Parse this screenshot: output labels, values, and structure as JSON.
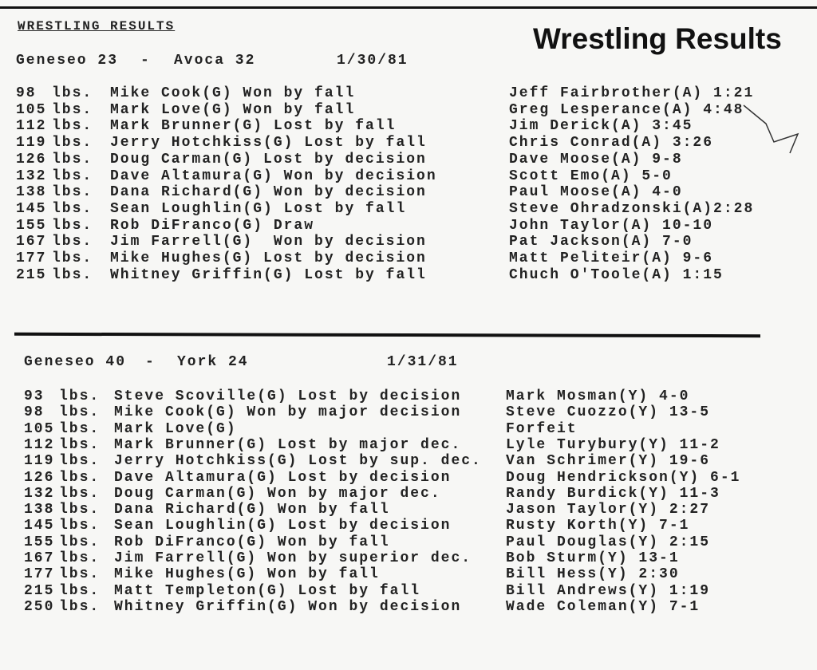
{
  "clipping_heading": "WRESTLING RESULTS",
  "title": "Wrestling Results",
  "meets": [
    {
      "score_home": "Geneseo 23",
      "score_away": "Avoca 32",
      "date": "1/30/81",
      "bouts": [
        {
          "weight": "98",
          "unit": "lbs.",
          "result": "Mike Cook(G) Won by fall",
          "opponent": "Jeff Fairbrother(A) 1:21"
        },
        {
          "weight": "105",
          "unit": "lbs.",
          "result": "Mark Love(G) Won by fall",
          "opponent": "Greg Lesperance(A) 4:48"
        },
        {
          "weight": "112",
          "unit": "lbs.",
          "result": "Mark Brunner(G) Lost by fall",
          "opponent": "Jim Derick(A) 3:45"
        },
        {
          "weight": "119",
          "unit": "lbs.",
          "result": "Jerry Hotchkiss(G) Lost by fall",
          "opponent": "Chris Conrad(A) 3:26"
        },
        {
          "weight": "126",
          "unit": "lbs.",
          "result": "Doug Carman(G) Lost by decision",
          "opponent": "Dave Moose(A) 9-8"
        },
        {
          "weight": "132",
          "unit": "lbs.",
          "result": "Dave Altamura(G) Won by decision",
          "opponent": "Scott Emo(A) 5-0"
        },
        {
          "weight": "138",
          "unit": "lbs.",
          "result": "Dana Richard(G) Won by decision",
          "opponent": "Paul Moose(A) 4-0"
        },
        {
          "weight": "145",
          "unit": "lbs.",
          "result": "Sean Loughlin(G) Lost by fall",
          "opponent": "Steve Ohradzonski(A)2:28"
        },
        {
          "weight": "155",
          "unit": "lbs.",
          "result": "Rob DiFranco(G) Draw",
          "opponent": "John Taylor(A) 10-10"
        },
        {
          "weight": "167",
          "unit": "lbs.",
          "result": "Jim Farrell(G)  Won by decision",
          "opponent": "Pat Jackson(A) 7-0"
        },
        {
          "weight": "177",
          "unit": "lbs.",
          "result": "Mike Hughes(G) Lost by decision",
          "opponent": "Matt Peliteir(A) 9-6"
        },
        {
          "weight": "215",
          "unit": "lbs.",
          "result": "Whitney Griffin(G) Lost by fall",
          "opponent": "Chuch O'Toole(A) 1:15"
        }
      ]
    },
    {
      "score_home": "Geneseo 40",
      "score_away": "York 24",
      "date": "1/31/81",
      "bouts": [
        {
          "weight": "93",
          "unit": "lbs.",
          "result": "Steve Scoville(G) Lost by decision",
          "opponent": "Mark Mosman(Y) 4-0"
        },
        {
          "weight": "98",
          "unit": "lbs.",
          "result": "Mike Cook(G) Won by major decision",
          "opponent": "Steve Cuozzo(Y) 13-5"
        },
        {
          "weight": "105",
          "unit": "lbs.",
          "result": "Mark Love(G)",
          "opponent": "Forfeit"
        },
        {
          "weight": "112",
          "unit": "lbs.",
          "result": "Mark Brunner(G) Lost by major dec.",
          "opponent": "Lyle Turybury(Y) 11-2"
        },
        {
          "weight": "119",
          "unit": "lbs.",
          "result": "Jerry Hotchkiss(G) Lost by sup. dec.",
          "opponent": "Van Schrimer(Y) 19-6"
        },
        {
          "weight": "126",
          "unit": "lbs.",
          "result": "Dave Altamura(G) Lost by decision",
          "opponent": "Doug Hendrickson(Y) 6-1"
        },
        {
          "weight": "132",
          "unit": "lbs.",
          "result": "Doug Carman(G) Won by major dec.",
          "opponent": "Randy Burdick(Y) 11-3"
        },
        {
          "weight": "138",
          "unit": "lbs.",
          "result": "Dana Richard(G) Won by fall",
          "opponent": "Jason Taylor(Y) 2:27"
        },
        {
          "weight": "145",
          "unit": "lbs.",
          "result": "Sean Loughlin(G) Lost by decision",
          "opponent": "Rusty Korth(Y) 7-1"
        },
        {
          "weight": "155",
          "unit": "lbs.",
          "result": "Rob DiFranco(G) Won by fall",
          "opponent": "Paul Douglas(Y) 2:15"
        },
        {
          "weight": "167",
          "unit": "lbs.",
          "result": "Jim Farrell(G) Won by superior dec.",
          "opponent": "Bob Sturm(Y) 13-1"
        },
        {
          "weight": "177",
          "unit": "lbs.",
          "result": "Mike Hughes(G) Won by fall",
          "opponent": "Bill Hess(Y) 2:30"
        },
        {
          "weight": "215",
          "unit": "lbs.",
          "result": "Matt Templeton(G) Lost by fall",
          "opponent": "Bill Andrews(Y) 1:19"
        },
        {
          "weight": "250",
          "unit": "lbs.",
          "result": "Whitney Griffin(G) Won by decision",
          "opponent": "Wade Coleman(Y) 7-1"
        }
      ]
    }
  ]
}
